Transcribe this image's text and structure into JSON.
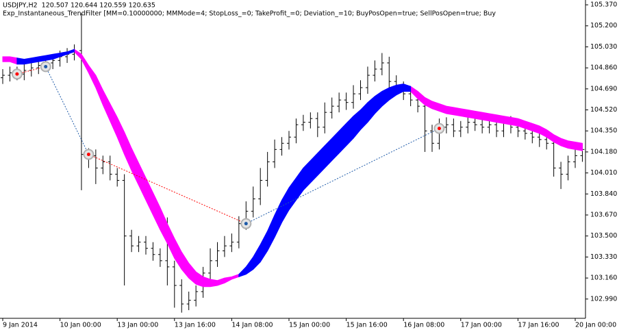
{
  "chart_data": {
    "type": "ohlc",
    "title": "USDJPY,H2  120.507 120.644 120.559 120.635",
    "subtitle": "Exp_Instantaneous_TrendFilter [MM=0.10000000; MMMode=4; StopLoss_=0; TakeProfit_=0; Deviation_=10; BuyPosOpen=true; SellPosOpen=true; Buy",
    "categories": [
      "9 Jan 2014",
      null,
      null,
      null,
      null,
      null,
      null,
      null,
      "10 Jan 00:00",
      null,
      null,
      null,
      null,
      null,
      null,
      null,
      "13 Jan 00:00",
      null,
      null,
      null,
      null,
      null,
      null,
      null,
      "13 Jan 16:00",
      null,
      null,
      null,
      null,
      null,
      null,
      null,
      "14 Jan 08:00",
      null,
      null,
      null,
      null,
      null,
      null,
      null,
      "15 Jan 00:00",
      null,
      null,
      null,
      null,
      null,
      null,
      null,
      "15 Jan 16:00",
      null,
      null,
      null,
      null,
      null,
      null,
      null,
      "16 Jan 08:00",
      null,
      null,
      null,
      null,
      null,
      null,
      null,
      "17 Jan 00:00",
      null,
      null,
      null,
      null,
      null,
      null,
      null,
      "17 Jan 16:00",
      null,
      null,
      null,
      null,
      null,
      null,
      null,
      "20 Jan 00:00",
      null
    ],
    "bars": {
      "color": "#000000",
      "open": [
        104.78,
        104.8,
        104.82,
        104.81,
        104.84,
        104.86,
        104.88,
        104.9,
        104.92,
        104.95,
        104.97,
        105.0,
        104.16,
        104.15,
        104.05,
        104.1,
        104.0,
        103.95,
        103.5,
        103.42,
        103.45,
        103.4,
        103.35,
        103.3,
        103.25,
        103.1,
        102.95,
        102.98,
        103.05,
        103.2,
        103.3,
        103.38,
        103.42,
        103.45,
        103.6,
        103.7,
        103.8,
        103.95,
        104.1,
        104.2,
        104.25,
        104.3,
        104.4,
        104.42,
        104.45,
        104.38,
        104.5,
        104.55,
        104.6,
        104.58,
        104.65,
        104.7,
        104.8,
        104.85,
        104.9,
        104.75,
        104.7,
        104.65,
        104.6,
        104.55,
        104.35,
        104.25,
        104.38,
        104.4,
        104.35,
        104.38,
        104.42,
        104.4,
        104.38,
        104.4,
        104.35,
        104.42,
        104.38,
        104.35,
        104.33,
        104.3,
        104.28,
        104.25,
        104.05,
        104.0,
        104.1,
        104.15
      ],
      "high": [
        104.85,
        104.87,
        104.87,
        104.89,
        104.91,
        104.93,
        104.95,
        104.97,
        105.0,
        105.02,
        105.05,
        105.3,
        104.21,
        104.2,
        104.15,
        104.15,
        104.05,
        104.0,
        103.55,
        103.5,
        103.5,
        103.45,
        103.4,
        103.65,
        103.3,
        103.15,
        103.05,
        103.1,
        103.25,
        103.4,
        103.45,
        103.5,
        103.52,
        103.66,
        103.78,
        103.9,
        104.05,
        104.18,
        104.28,
        104.3,
        104.35,
        104.45,
        104.48,
        104.5,
        104.5,
        104.58,
        104.62,
        104.66,
        104.66,
        104.72,
        104.76,
        104.87,
        104.92,
        104.98,
        104.95,
        104.8,
        104.75,
        104.7,
        104.65,
        104.6,
        104.4,
        104.45,
        104.46,
        104.45,
        104.43,
        104.47,
        104.47,
        104.45,
        104.45,
        104.45,
        104.47,
        104.47,
        104.42,
        104.4,
        104.37,
        104.35,
        104.33,
        104.3,
        104.1,
        104.15,
        104.2,
        104.25
      ],
      "low": [
        104.73,
        104.75,
        104.76,
        104.76,
        104.79,
        104.81,
        104.83,
        104.85,
        104.87,
        104.9,
        104.92,
        103.87,
        104.05,
        103.92,
        104.0,
        103.95,
        103.9,
        103.1,
        103.37,
        103.37,
        103.35,
        103.3,
        103.25,
        103.1,
        102.92,
        102.88,
        102.9,
        102.93,
        103.0,
        103.15,
        103.25,
        103.33,
        103.37,
        103.4,
        103.55,
        103.65,
        103.75,
        103.9,
        104.05,
        104.15,
        104.2,
        104.25,
        104.35,
        104.37,
        104.3,
        104.33,
        104.45,
        104.5,
        104.52,
        104.53,
        104.6,
        104.65,
        104.75,
        104.8,
        104.7,
        104.65,
        104.6,
        104.55,
        104.5,
        104.18,
        104.18,
        104.2,
        104.33,
        104.3,
        104.3,
        104.33,
        104.35,
        104.33,
        104.33,
        104.3,
        104.3,
        104.33,
        104.3,
        104.28,
        104.25,
        104.22,
        104.2,
        103.98,
        103.88,
        103.95,
        104.05,
        104.1
      ],
      "close": [
        104.8,
        104.82,
        104.81,
        104.84,
        104.86,
        104.88,
        104.9,
        104.92,
        104.95,
        104.97,
        105.0,
        104.16,
        104.15,
        104.05,
        104.1,
        104.0,
        103.95,
        103.5,
        103.42,
        103.45,
        103.4,
        103.35,
        103.3,
        103.25,
        103.1,
        102.95,
        102.98,
        103.05,
        103.2,
        103.3,
        103.38,
        103.42,
        103.45,
        103.6,
        103.7,
        103.8,
        103.95,
        104.1,
        104.2,
        104.25,
        104.3,
        104.4,
        104.42,
        104.45,
        104.38,
        104.5,
        104.55,
        104.6,
        104.58,
        104.65,
        104.7,
        104.8,
        104.85,
        104.9,
        104.75,
        104.7,
        104.65,
        104.6,
        104.55,
        104.35,
        104.25,
        104.38,
        104.4,
        104.35,
        104.38,
        104.42,
        104.4,
        104.38,
        104.4,
        104.35,
        104.42,
        104.38,
        104.35,
        104.33,
        104.3,
        104.28,
        104.25,
        104.05,
        104.0,
        104.1,
        104.15,
        104.2
      ]
    },
    "bands": [
      {
        "color": "#ff00ff",
        "upper": [
          104.95,
          104.95,
          104.94,
          null,
          null,
          null,
          null,
          null,
          null,
          null,
          105.01,
          104.97,
          104.88,
          104.8,
          104.68,
          104.57,
          104.46,
          104.34,
          104.21,
          104.09,
          103.97,
          103.85,
          103.73,
          103.6,
          103.48,
          103.37,
          103.28,
          103.21,
          103.17,
          103.15,
          103.14,
          103.16,
          103.17,
          103.19,
          null,
          null,
          null,
          null,
          null,
          null,
          null,
          null,
          null,
          null,
          null,
          null,
          null,
          null,
          null,
          null,
          null,
          null,
          null,
          null,
          null,
          null,
          null,
          104.71,
          104.67,
          104.62,
          104.59,
          104.57,
          104.55,
          104.54,
          104.53,
          104.52,
          104.51,
          104.5,
          104.49,
          104.48,
          104.47,
          104.46,
          104.45,
          104.43,
          104.41,
          104.39,
          104.36,
          104.32,
          104.29,
          104.27,
          104.26,
          104.25
        ],
        "lower": [
          104.91,
          104.91,
          104.89,
          null,
          null,
          null,
          null,
          null,
          null,
          null,
          104.99,
          104.93,
          104.82,
          104.7,
          104.56,
          104.43,
          104.3,
          104.16,
          104.03,
          103.91,
          103.79,
          103.67,
          103.55,
          103.44,
          103.32,
          103.23,
          103.16,
          103.11,
          103.09,
          103.09,
          103.1,
          103.12,
          103.15,
          103.17,
          null,
          null,
          null,
          null,
          null,
          null,
          null,
          null,
          null,
          null,
          null,
          null,
          null,
          null,
          null,
          null,
          null,
          null,
          null,
          null,
          null,
          null,
          null,
          104.67,
          104.61,
          104.56,
          104.53,
          104.51,
          104.49,
          104.48,
          104.47,
          104.46,
          104.45,
          104.44,
          104.43,
          104.42,
          104.41,
          104.4,
          104.39,
          104.37,
          104.35,
          104.33,
          104.3,
          104.26,
          104.23,
          104.21,
          104.2,
          104.19
        ]
      },
      {
        "color": "#0000ff",
        "upper": [
          null,
          null,
          104.94,
          104.93,
          104.94,
          104.95,
          104.96,
          104.97,
          104.98,
          104.99,
          105.01,
          null,
          null,
          null,
          null,
          null,
          null,
          null,
          null,
          null,
          null,
          null,
          null,
          null,
          null,
          null,
          null,
          null,
          null,
          null,
          null,
          null,
          null,
          103.19,
          103.25,
          103.33,
          103.43,
          103.54,
          103.67,
          103.79,
          103.89,
          103.97,
          104.05,
          104.11,
          104.17,
          104.23,
          104.29,
          104.35,
          104.41,
          104.47,
          104.52,
          104.58,
          104.63,
          104.67,
          104.7,
          104.72,
          104.73,
          104.71,
          null,
          null,
          null,
          null,
          null,
          null,
          null,
          null,
          null,
          null,
          null,
          null,
          null,
          null,
          null,
          null,
          null,
          null,
          null,
          null,
          null,
          null,
          null,
          null
        ],
        "lower": [
          null,
          null,
          104.89,
          104.89,
          104.9,
          104.91,
          104.92,
          104.93,
          104.95,
          104.97,
          104.99,
          null,
          null,
          null,
          null,
          null,
          null,
          null,
          null,
          null,
          null,
          null,
          null,
          null,
          null,
          null,
          null,
          null,
          null,
          null,
          null,
          null,
          null,
          103.17,
          103.19,
          103.23,
          103.29,
          103.38,
          103.49,
          103.61,
          103.71,
          103.79,
          103.87,
          103.93,
          103.99,
          104.05,
          104.11,
          104.17,
          104.23,
          104.29,
          104.36,
          104.42,
          104.49,
          104.55,
          104.6,
          104.64,
          104.67,
          104.67,
          null,
          null,
          null,
          null,
          null,
          null,
          null,
          null,
          null,
          null,
          null,
          null,
          null,
          null,
          null,
          null,
          null,
          null,
          null,
          null,
          null,
          null,
          null,
          null
        ]
      }
    ],
    "trades": [
      {
        "color": "#ff0000",
        "values": [
          null,
          null,
          104.81,
          null,
          null,
          null,
          null,
          null,
          null,
          null,
          null,
          null,
          104.16,
          null,
          null,
          null,
          null,
          null,
          null,
          null,
          null,
          null,
          null,
          null,
          null,
          null,
          null,
          null,
          null,
          null,
          null,
          null,
          null,
          null,
          null,
          null,
          null,
          null,
          null,
          null,
          null,
          null,
          null,
          null,
          null,
          null,
          null,
          null,
          null,
          null,
          null,
          null,
          null,
          null,
          null,
          null,
          null,
          null,
          null,
          null,
          null,
          104.37,
          null,
          null,
          null,
          null,
          null,
          null,
          null,
          null,
          null,
          null,
          null,
          null,
          null,
          null,
          null,
          null,
          null,
          null,
          null,
          null
        ]
      },
      {
        "color": "#1e5aa8",
        "values": [
          null,
          null,
          null,
          null,
          null,
          null,
          104.87,
          null,
          null,
          null,
          null,
          null,
          null,
          null,
          null,
          null,
          null,
          null,
          null,
          null,
          null,
          null,
          null,
          null,
          null,
          null,
          null,
          null,
          null,
          null,
          null,
          null,
          null,
          null,
          103.6,
          null,
          null,
          null,
          null,
          null,
          null,
          null,
          null,
          null,
          null,
          null,
          null,
          null,
          null,
          null,
          null,
          null,
          null,
          null,
          null,
          null,
          null,
          null,
          null,
          null,
          null,
          null,
          null,
          null,
          null,
          null,
          null,
          null,
          null,
          null,
          null,
          null,
          null,
          null,
          null,
          null,
          null,
          null,
          null,
          null,
          null,
          null
        ]
      }
    ],
    "ylim": [
      102.834,
      105.409
    ],
    "yticks": [
      {
        "value": 105.37,
        "label": "105.370"
      },
      {
        "value": 105.2,
        "label": "105.200"
      },
      {
        "value": 105.03,
        "label": "105.030"
      },
      {
        "value": 104.86,
        "label": "104.860"
      },
      {
        "value": 104.69,
        "label": "104.690"
      },
      {
        "value": 104.52,
        "label": "104.520"
      },
      {
        "value": 104.35,
        "label": "104.350"
      },
      {
        "value": 104.18,
        "label": "104.180"
      },
      {
        "value": 104.01,
        "label": "104.010"
      },
      {
        "value": 103.84,
        "label": "103.840"
      },
      {
        "value": 103.67,
        "label": "103.670"
      },
      {
        "value": 103.5,
        "label": "103.500"
      },
      {
        "value": 103.33,
        "label": "103.330"
      },
      {
        "value": 103.16,
        "label": "103.160"
      },
      {
        "value": 102.99,
        "label": "102.990"
      }
    ],
    "grid": false
  }
}
